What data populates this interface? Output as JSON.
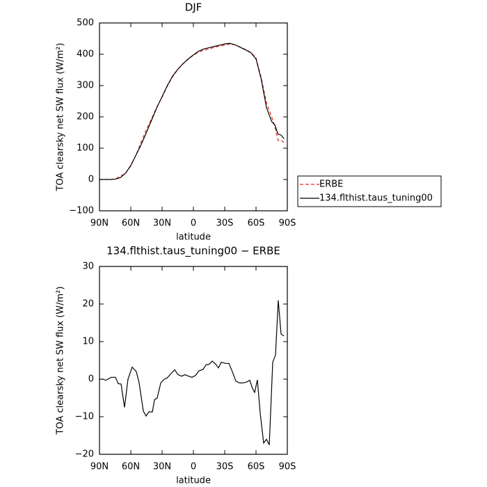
{
  "chart_data": [
    {
      "type": "line",
      "title": "DJF",
      "xlabel": "latitude",
      "ylabel": "TOA clearsky net SW flux (W/m²)",
      "x": [
        90,
        85,
        80,
        75,
        70,
        65,
        60,
        55,
        50,
        45,
        40,
        35,
        30,
        25,
        20,
        15,
        10,
        5,
        0,
        -5,
        -10,
        -15,
        -20,
        -25,
        -30,
        -35,
        -40,
        -45,
        -50,
        -55,
        -60,
        -65,
        -70,
        -75,
        -78,
        -81,
        -84,
        -87
      ],
      "series": [
        {
          "name": "ERBE",
          "color": "#e8281e",
          "linestyle": "dashed",
          "values": [
            0,
            0,
            0,
            2,
            10,
            20,
            43,
            78,
            120,
            160,
            195,
            232,
            263,
            298,
            328,
            351,
            369,
            384,
            397,
            407,
            413,
            417,
            422,
            426,
            429,
            433,
            430,
            423,
            415,
            406,
            388,
            325,
            245,
            200,
            170,
            125,
            125,
            118
          ]
        },
        {
          "name": "134.flthist.taus_tuning00",
          "color": "#000000",
          "linestyle": "solid",
          "values": [
            0,
            0,
            0,
            1,
            6,
            20,
            45,
            78,
            112,
            150,
            190,
            230,
            265,
            300,
            330,
            352,
            370,
            385,
            398,
            410,
            417,
            421,
            425,
            429,
            433,
            435,
            430,
            422,
            414,
            405,
            385,
            320,
            230,
            185,
            175,
            145,
            142,
            130
          ]
        }
      ],
      "xlim": [
        90,
        -90
      ],
      "xticks": [
        {
          "value": 90,
          "label": "90N"
        },
        {
          "value": 60,
          "label": "60N"
        },
        {
          "value": 30,
          "label": "30N"
        },
        0,
        {
          "value": -30,
          "label": "30S"
        },
        {
          "value": -60,
          "label": "60S"
        },
        {
          "value": -90,
          "label": "90S"
        }
      ],
      "ylim": [
        -100,
        500
      ],
      "yticks": [
        {
          "value": -100,
          "label": "−100"
        },
        0,
        100,
        200,
        300,
        400,
        500
      ],
      "legend": "right"
    },
    {
      "type": "line",
      "title": "134.flthist.taus_tuning00 − ERBE",
      "xlabel": "latitude",
      "ylabel": "TOA clearsky net SW flux (W/m²)",
      "x": [
        90,
        86.7,
        84,
        78.7,
        74.7,
        72,
        69.3,
        66,
        62.7,
        58.7,
        54.7,
        52,
        48,
        45.3,
        42.7,
        39.3,
        37.3,
        34.7,
        31.3,
        28,
        25.3,
        21.3,
        18,
        14.7,
        11.3,
        8,
        4.7,
        1.3,
        -2,
        -5.3,
        -9.3,
        -12,
        -15.3,
        -18,
        -21.3,
        -24,
        -26.7,
        -30.7,
        -34,
        -37.3,
        -40.7,
        -44,
        -47.3,
        -50.7,
        -54,
        -56.7,
        -58.7,
        -61.3,
        -64,
        -67.3,
        -70,
        -72.7,
        -76,
        -78.7,
        -81.3,
        -84,
        -86.7
      ],
      "values": [
        0,
        0,
        -0.3,
        0.5,
        0.5,
        -1.2,
        -1.3,
        -7.5,
        0,
        3.2,
        2,
        -1,
        -8.5,
        -9.8,
        -8.7,
        -8.7,
        -5.5,
        -5,
        -1,
        0,
        0.3,
        1.5,
        2.5,
        1.2,
        0.8,
        1.2,
        0.8,
        0.5,
        1,
        2.2,
        2.6,
        3.8,
        4,
        4.8,
        4,
        3,
        4.5,
        4.2,
        4.2,
        2,
        -0.5,
        -1,
        -1,
        -0.8,
        -0.3,
        -2.5,
        -3.5,
        -0.2,
        -9,
        -17,
        -16,
        -17.5,
        4.5,
        6.5,
        21,
        12,
        11.5
      ],
      "color": "#000000",
      "xlim": [
        90,
        -90
      ],
      "xticks": [
        {
          "value": 90,
          "label": "90N"
        },
        {
          "value": 60,
          "label": "60N"
        },
        {
          "value": 30,
          "label": "30N"
        },
        0,
        {
          "value": -30,
          "label": "30S"
        },
        {
          "value": -60,
          "label": "60S"
        },
        {
          "value": -90,
          "label": "90S"
        }
      ],
      "ylim": [
        -20,
        30
      ],
      "yticks": [
        {
          "value": -20,
          "label": "−20"
        },
        {
          "value": -10,
          "label": "−10"
        },
        0,
        10,
        20,
        30
      ]
    }
  ]
}
